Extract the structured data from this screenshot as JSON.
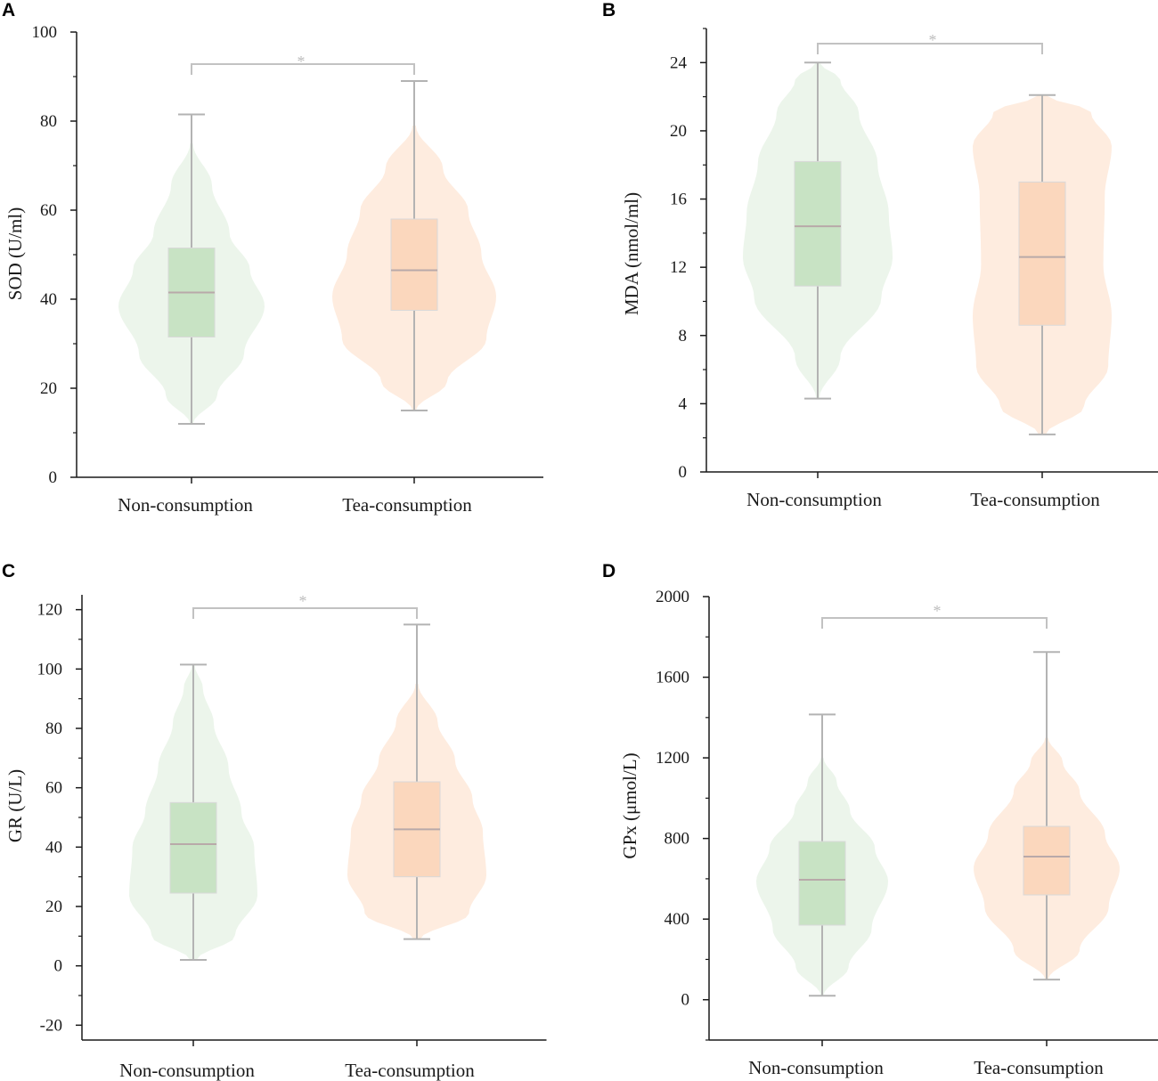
{
  "chart_data": [
    {
      "panel": "A",
      "type": "violin-box",
      "ylabel": "SOD (U/ml)",
      "ylim": [
        0,
        100
      ],
      "yticks": [
        0,
        20,
        40,
        60,
        80,
        100
      ],
      "ytick_labels": [
        "0",
        "20",
        "40",
        "60",
        "80",
        "100"
      ],
      "categories": [
        "Non-consumption",
        "Tea-consumption"
      ],
      "significance": "*",
      "groups": [
        {
          "name": "Non-consumption",
          "whisker_min": 12,
          "q1": 31.5,
          "median": 41.5,
          "q3": 51.5,
          "whisker_max": 81.5,
          "violin_min": 12,
          "violin_max": 75
        },
        {
          "name": "Tea-consumption",
          "whisker_min": 15,
          "q1": 37.5,
          "median": 46.5,
          "q3": 58,
          "whisker_max": 89,
          "violin_min": 15,
          "violin_max": 79
        }
      ]
    },
    {
      "panel": "B",
      "type": "violin-box",
      "ylabel": "MDA (nmol/ml)",
      "ylim": [
        0,
        26
      ],
      "yticks": [
        0,
        4,
        8,
        12,
        16,
        20,
        24
      ],
      "ytick_labels": [
        "0",
        "4",
        "8",
        "12",
        "16",
        "20",
        "24"
      ],
      "categories": [
        "Non-consumption",
        "Tea-consumption"
      ],
      "significance": "*",
      "groups": [
        {
          "name": "Non-consumption",
          "whisker_min": 4.3,
          "q1": 10.9,
          "median": 14.4,
          "q3": 18.2,
          "whisker_max": 24,
          "violin_min": 4.3,
          "violin_max": 24
        },
        {
          "name": "Tea-consumption",
          "whisker_min": 2.2,
          "q1": 8.6,
          "median": 12.6,
          "q3": 17,
          "whisker_max": 22.1,
          "violin_min": 2.2,
          "violin_max": 22.1
        }
      ]
    },
    {
      "panel": "C",
      "type": "violin-box",
      "ylabel": "GR (U/L)",
      "ylim": [
        -25,
        125
      ],
      "yticks": [
        -20,
        0,
        20,
        40,
        60,
        80,
        100,
        120
      ],
      "ytick_labels": [
        "-20",
        "0",
        "20",
        "40",
        "60",
        "80",
        "100",
        "120"
      ],
      "categories": [
        "Non-consumption",
        "Tea-consumption"
      ],
      "significance": "*",
      "groups": [
        {
          "name": "Non-consumption",
          "whisker_min": 2,
          "q1": 24.5,
          "median": 41,
          "q3": 55,
          "whisker_max": 101.5,
          "violin_min": 2,
          "violin_max": 101.5
        },
        {
          "name": "Tea-consumption",
          "whisker_min": 9,
          "q1": 30,
          "median": 46,
          "q3": 62,
          "whisker_max": 115,
          "violin_min": 9,
          "violin_max": 95
        }
      ]
    },
    {
      "panel": "D",
      "type": "violin-box",
      "ylabel": "GPx (μmol/L)",
      "ylim": [
        -200,
        2000
      ],
      "yticks": [
        0,
        400,
        800,
        1200,
        1600,
        2000
      ],
      "ytick_labels": [
        "0",
        "400",
        "800",
        "1200",
        "1600",
        "2000"
      ],
      "categories": [
        "Non-consumption",
        "Tea-consumption"
      ],
      "significance": "*",
      "groups": [
        {
          "name": "Non-consumption",
          "whisker_min": 20,
          "q1": 370,
          "median": 595,
          "q3": 785,
          "whisker_max": 1415,
          "violin_min": 20,
          "violin_max": 1200
        },
        {
          "name": "Tea-consumption",
          "whisker_min": 100,
          "q1": 520,
          "median": 710,
          "q3": 860,
          "whisker_max": 1725,
          "violin_min": 100,
          "violin_max": 1300
        }
      ]
    }
  ],
  "colors": {
    "non_fill": "#c8e3c4",
    "non_violin": "#e6f2e4",
    "tea_fill": "#fbd7bd",
    "tea_violin": "#fde6d4",
    "whisker": "#b3b3b3",
    "axis": "#1a1a1a",
    "bracket": "#c2c2c2"
  }
}
